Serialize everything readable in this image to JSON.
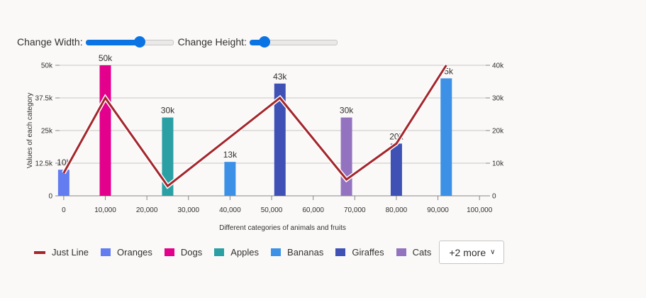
{
  "controls": {
    "width_label": "Change Width:",
    "width_value": 0.62,
    "height_label": "Change Height:",
    "height_value": 0.17
  },
  "legend": {
    "items": [
      {
        "label": "Just Line",
        "color": "#a4262c",
        "kind": "line"
      },
      {
        "label": "Oranges",
        "color": "#637cef",
        "kind": "bar"
      },
      {
        "label": "Dogs",
        "color": "#e3008c",
        "kind": "bar"
      },
      {
        "label": "Apples",
        "color": "#2aa0a4",
        "kind": "bar"
      },
      {
        "label": "Bananas",
        "color": "#3c91e6",
        "kind": "bar"
      },
      {
        "label": "Giraffes",
        "color": "#3f51b5",
        "kind": "bar"
      },
      {
        "label": "Cats",
        "color": "#9373c0",
        "kind": "bar"
      }
    ],
    "more_label": "+2 more"
  },
  "chart_data": {
    "type": "bar",
    "xlabel": "Different categories of animals and fruits",
    "ylabel": "Values of each category",
    "x_ticks": [
      "0",
      "10,000",
      "20,000",
      "30,000",
      "40,000",
      "50,000",
      "60,000",
      "70,000",
      "80,000",
      "90,000",
      "100,000"
    ],
    "xlim": [
      -1000,
      101500
    ],
    "ylim": [
      0,
      50000
    ],
    "y_ticks": [
      "0",
      "12.5k",
      "25k",
      "37.5k",
      "50k"
    ],
    "y2lim": [
      0,
      40000
    ],
    "y2_ticks": [
      "0",
      "10k",
      "20k",
      "30k",
      "40k"
    ],
    "grid": true,
    "bars": [
      {
        "name": "Oranges",
        "x": 0,
        "value": 10000,
        "label": "10k",
        "color": "#637cef"
      },
      {
        "name": "Dogs",
        "x": 10000,
        "value": 50000,
        "label": "50k",
        "color": "#e3008c"
      },
      {
        "name": "Apples",
        "x": 25000,
        "value": 30000,
        "label": "30k",
        "color": "#2aa0a4"
      },
      {
        "name": "Bananas",
        "x": 40000,
        "value": 13000,
        "label": "13k",
        "color": "#3c91e6"
      },
      {
        "name": "Giraffes",
        "x": 52000,
        "value": 43000,
        "label": "43k",
        "color": "#3f51b5"
      },
      {
        "name": "Cats",
        "x": 68000,
        "value": 30000,
        "label": "30k",
        "color": "#9373c0"
      },
      {
        "name": "",
        "x": 80000,
        "value": 20000,
        "label": "20k",
        "color": "#3f51b5"
      },
      {
        "name": "",
        "x": 92000,
        "value": 45000,
        "label": "45k",
        "color": "#3c91e6"
      }
    ],
    "line": {
      "name": "Just Line",
      "color": "#a4262c",
      "axis": "secondary",
      "points": [
        {
          "x": 0,
          "y": 7000
        },
        {
          "x": 10000,
          "y": 30000
        },
        {
          "x": 25000,
          "y": 3000
        },
        {
          "x": 52000,
          "y": 30000
        },
        {
          "x": 68000,
          "y": 5000
        },
        {
          "x": 80000,
          "y": 16000
        },
        {
          "x": 92000,
          "y": 40000
        }
      ]
    }
  }
}
